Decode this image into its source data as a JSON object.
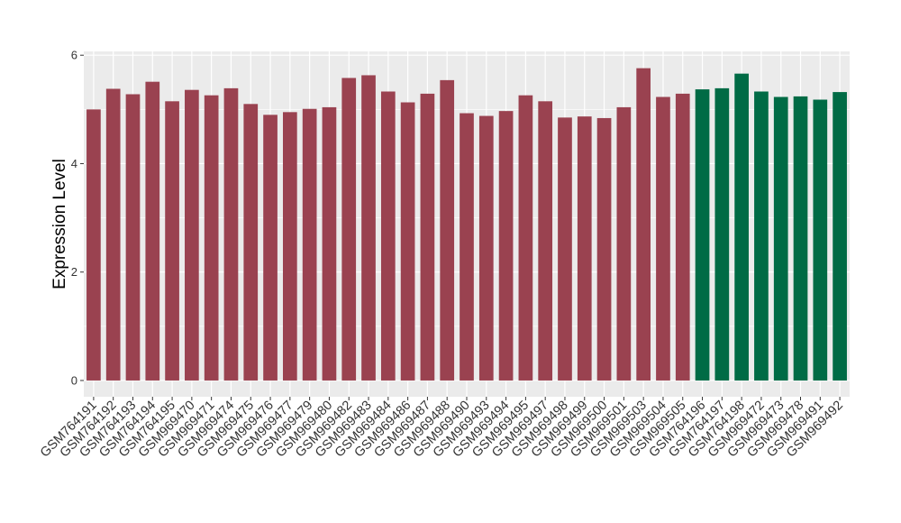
{
  "chart_data": {
    "type": "bar",
    "title": "",
    "xlabel": "",
    "ylabel": "Expression Level",
    "ylim": [
      0,
      6
    ],
    "yticks": [
      0,
      2,
      4,
      6
    ],
    "grid": true,
    "legend": "none",
    "colors": {
      "group_a": "#9a4250",
      "group_b": "#006b45",
      "panel": "#ebebeb",
      "gridline": "#ffffff"
    },
    "categories": [
      "GSM764191",
      "GSM764192",
      "GSM764193",
      "GSM764194",
      "GSM764195",
      "GSM969470",
      "GSM969471",
      "GSM969474",
      "GSM969475",
      "GSM969476",
      "GSM969477",
      "GSM969479",
      "GSM969480",
      "GSM969482",
      "GSM969483",
      "GSM969484",
      "GSM969486",
      "GSM969487",
      "GSM969488",
      "GSM969490",
      "GSM969493",
      "GSM969494",
      "GSM969495",
      "GSM969497",
      "GSM969498",
      "GSM969499",
      "GSM969500",
      "GSM969501",
      "GSM969503",
      "GSM969504",
      "GSM969505",
      "GSM764196",
      "GSM764197",
      "GSM764198",
      "GSM969472",
      "GSM969473",
      "GSM969478",
      "GSM969491",
      "GSM969492"
    ],
    "values": [
      5.0,
      5.38,
      5.28,
      5.51,
      5.15,
      5.36,
      5.26,
      5.39,
      5.1,
      4.9,
      4.95,
      5.01,
      5.04,
      5.58,
      5.63,
      5.33,
      5.13,
      5.29,
      5.54,
      4.93,
      4.88,
      4.97,
      5.26,
      5.15,
      4.85,
      4.87,
      4.84,
      5.04,
      5.76,
      5.23,
      5.29,
      5.37,
      5.39,
      5.66,
      5.33,
      5.23,
      5.24,
      5.18,
      5.32
    ],
    "groups": [
      "a",
      "a",
      "a",
      "a",
      "a",
      "a",
      "a",
      "a",
      "a",
      "a",
      "a",
      "a",
      "a",
      "a",
      "a",
      "a",
      "a",
      "a",
      "a",
      "a",
      "a",
      "a",
      "a",
      "a",
      "a",
      "a",
      "a",
      "a",
      "a",
      "a",
      "a",
      "b",
      "b",
      "b",
      "b",
      "b",
      "b",
      "b",
      "b"
    ]
  }
}
